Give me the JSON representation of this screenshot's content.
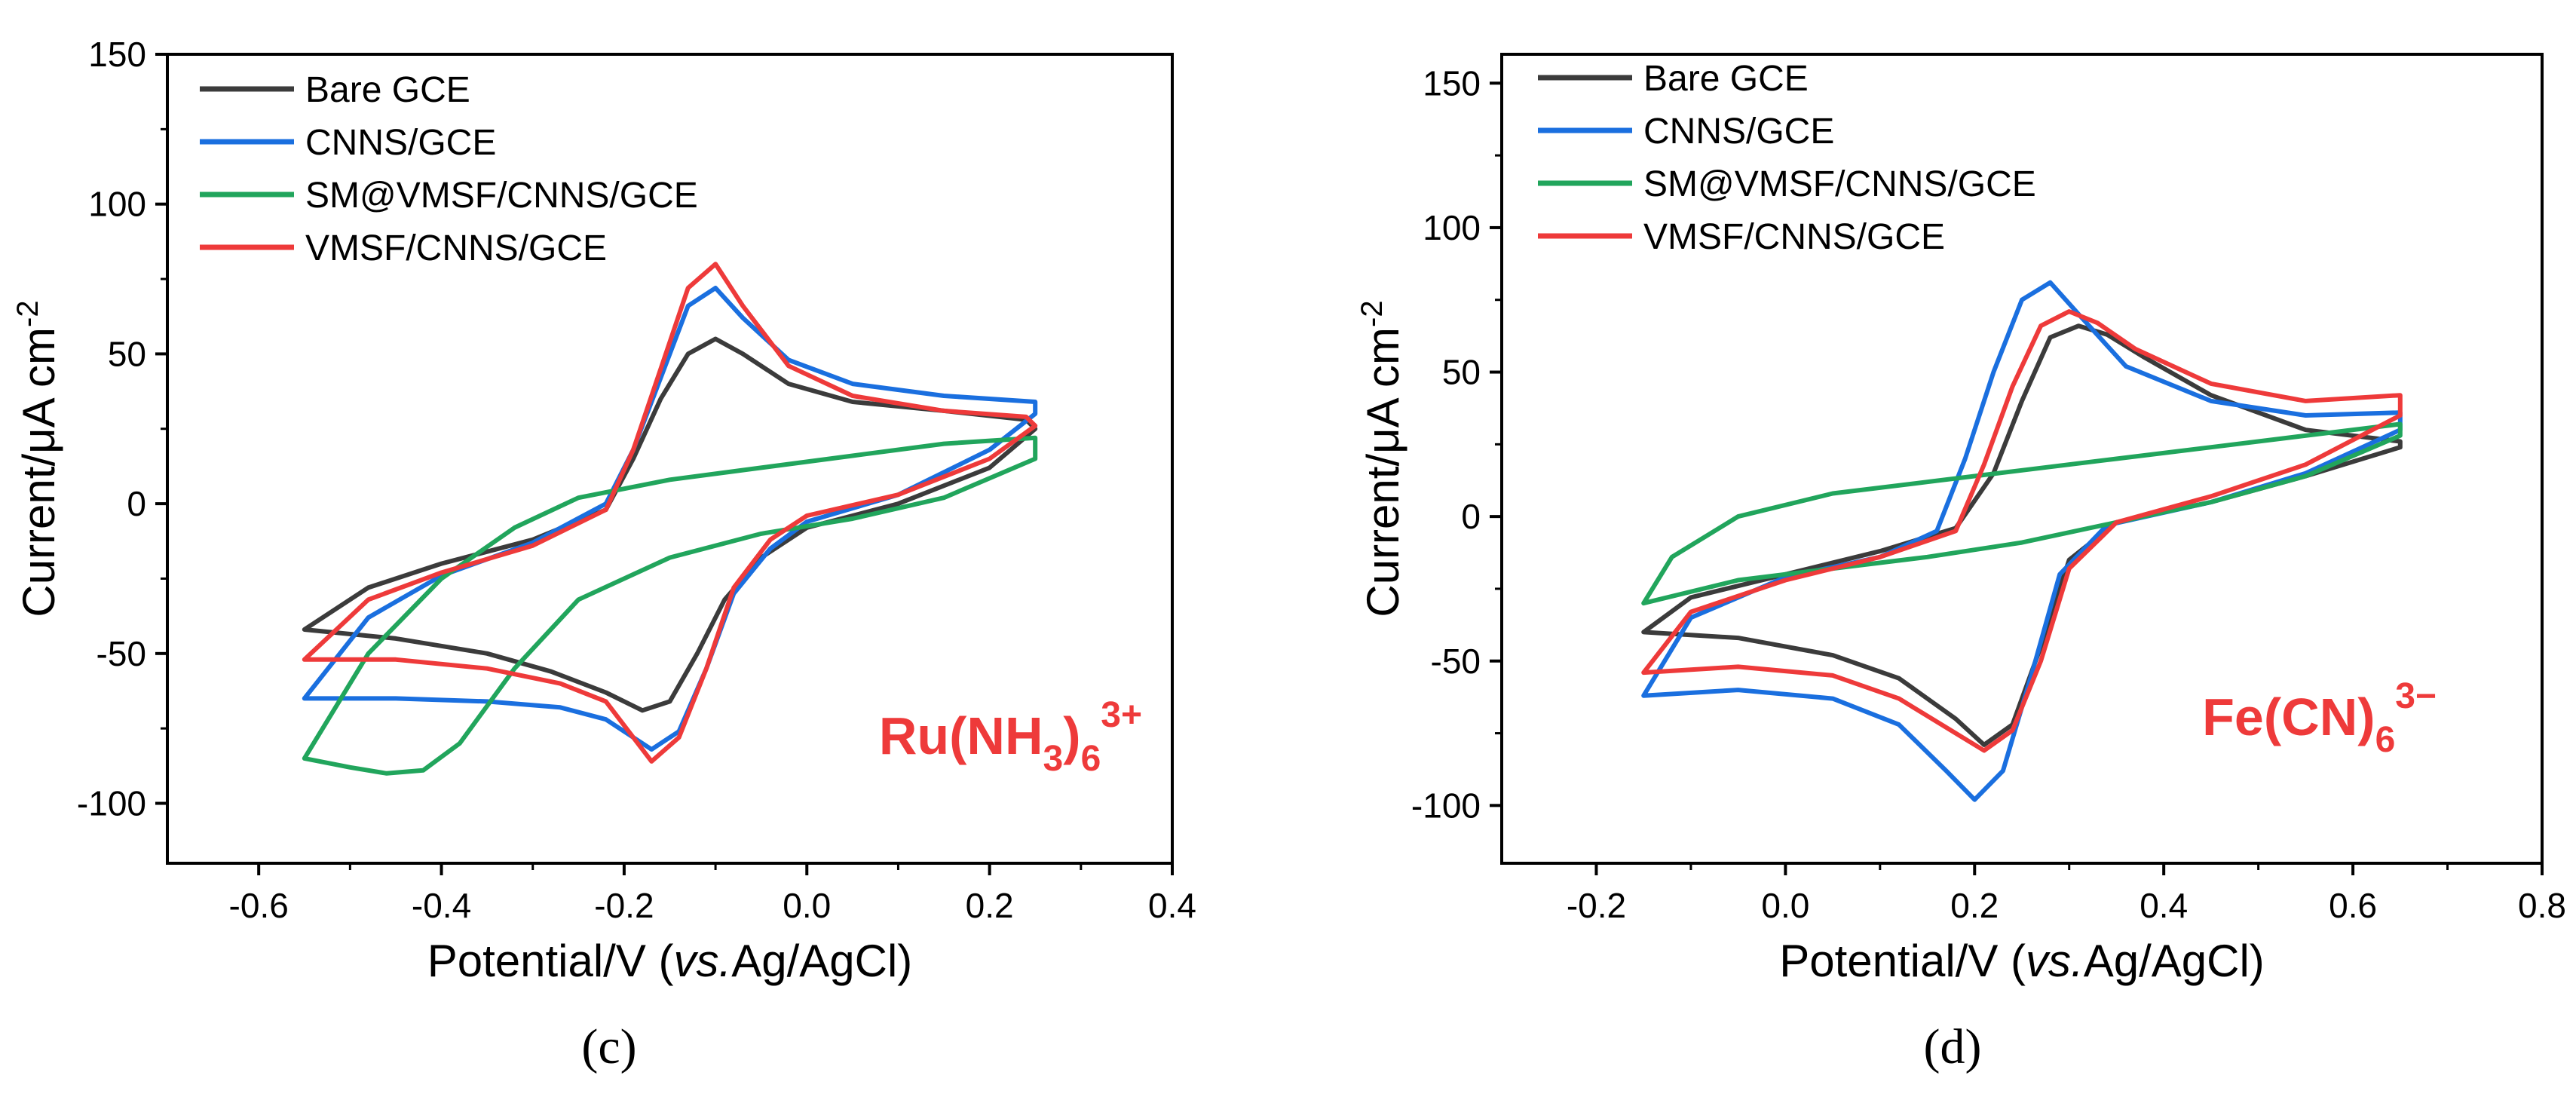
{
  "colors": {
    "bare": "#3b3b3b",
    "cnns": "#1a6fdf",
    "sm": "#21a55c",
    "vmsf": "#ee3a3a",
    "species": "#ee3a3a"
  },
  "chart_data": [
    {
      "type": "line",
      "panel_label": "(c)",
      "ylabel_main": "Current/μA cm",
      "ylabel_sup": "-2",
      "xlabel_main": "Potential/V (",
      "xlabel_italic": "vs.",
      "xlabel_end": "Ag/AgCl)",
      "xlim": [
        -0.7,
        0.4
      ],
      "ylim": [
        -120,
        150
      ],
      "xticks": [
        "-0.6",
        "-0.4",
        "-0.2",
        "0.0",
        "0.2",
        "0.4"
      ],
      "yticks": [
        "-100",
        "-50",
        "0",
        "50",
        "100",
        "150"
      ],
      "species": {
        "base": "Ru(NH",
        "sub1": "3",
        "mid": ")",
        "sub2": "6",
        "sup": "3+"
      },
      "legend": [
        "Bare GCE",
        "CNNS/GCE",
        "SM@VMSF/CNNS/GCE",
        "VMSF/CNNS/GCE"
      ],
      "series": [
        {
          "name": "Bare GCE",
          "color_key": "bare",
          "points": [
            [
              -0.55,
              -42
            ],
            [
              -0.45,
              -45
            ],
            [
              -0.35,
              -50
            ],
            [
              -0.28,
              -56
            ],
            [
              -0.22,
              -63
            ],
            [
              -0.18,
              -69
            ],
            [
              -0.15,
              -66
            ],
            [
              -0.12,
              -50
            ],
            [
              -0.09,
              -32
            ],
            [
              -0.05,
              -18
            ],
            [
              0.0,
              -8
            ],
            [
              0.1,
              0
            ],
            [
              0.2,
              12
            ],
            [
              0.25,
              25
            ],
            [
              0.24,
              28
            ],
            [
              0.15,
              31
            ],
            [
              0.05,
              34
            ],
            [
              -0.02,
              40
            ],
            [
              -0.07,
              50
            ],
            [
              -0.1,
              55
            ],
            [
              -0.13,
              50
            ],
            [
              -0.16,
              35
            ],
            [
              -0.19,
              15
            ],
            [
              -0.22,
              -2
            ],
            [
              -0.3,
              -12
            ],
            [
              -0.4,
              -20
            ],
            [
              -0.48,
              -28
            ],
            [
              -0.55,
              -42
            ]
          ]
        },
        {
          "name": "CNNS/GCE",
          "color_key": "cnns",
          "points": [
            [
              -0.55,
              -65
            ],
            [
              -0.45,
              -65
            ],
            [
              -0.35,
              -66
            ],
            [
              -0.27,
              -68
            ],
            [
              -0.22,
              -72
            ],
            [
              -0.17,
              -82
            ],
            [
              -0.14,
              -76
            ],
            [
              -0.11,
              -55
            ],
            [
              -0.08,
              -30
            ],
            [
              -0.04,
              -15
            ],
            [
              0.0,
              -6
            ],
            [
              0.1,
              3
            ],
            [
              0.2,
              18
            ],
            [
              0.25,
              30
            ],
            [
              0.25,
              34
            ],
            [
              0.15,
              36
            ],
            [
              0.05,
              40
            ],
            [
              -0.02,
              48
            ],
            [
              -0.07,
              62
            ],
            [
              -0.1,
              72
            ],
            [
              -0.13,
              66
            ],
            [
              -0.16,
              42
            ],
            [
              -0.19,
              18
            ],
            [
              -0.22,
              0
            ],
            [
              -0.3,
              -13
            ],
            [
              -0.4,
              -24
            ],
            [
              -0.48,
              -38
            ],
            [
              -0.55,
              -65
            ]
          ]
        },
        {
          "name": "SM@VMSF/CNNS/GCE",
          "color_key": "sm",
          "points": [
            [
              -0.55,
              -85
            ],
            [
              -0.5,
              -88
            ],
            [
              -0.46,
              -90
            ],
            [
              -0.42,
              -89
            ],
            [
              -0.38,
              -80
            ],
            [
              -0.32,
              -55
            ],
            [
              -0.25,
              -32
            ],
            [
              -0.15,
              -18
            ],
            [
              -0.05,
              -10
            ],
            [
              0.05,
              -5
            ],
            [
              0.15,
              2
            ],
            [
              0.25,
              15
            ],
            [
              0.25,
              22
            ],
            [
              0.15,
              20
            ],
            [
              0.05,
              16
            ],
            [
              -0.05,
              12
            ],
            [
              -0.15,
              8
            ],
            [
              -0.25,
              2
            ],
            [
              -0.32,
              -8
            ],
            [
              -0.4,
              -25
            ],
            [
              -0.48,
              -50
            ],
            [
              -0.55,
              -85
            ]
          ]
        },
        {
          "name": "VMSF/CNNS/GCE",
          "color_key": "vmsf",
          "points": [
            [
              -0.55,
              -52
            ],
            [
              -0.45,
              -52
            ],
            [
              -0.35,
              -55
            ],
            [
              -0.27,
              -60
            ],
            [
              -0.22,
              -66
            ],
            [
              -0.17,
              -86
            ],
            [
              -0.14,
              -78
            ],
            [
              -0.11,
              -55
            ],
            [
              -0.08,
              -28
            ],
            [
              -0.04,
              -12
            ],
            [
              0.0,
              -4
            ],
            [
              0.1,
              3
            ],
            [
              0.2,
              15
            ],
            [
              0.25,
              26
            ],
            [
              0.24,
              29
            ],
            [
              0.15,
              31
            ],
            [
              0.05,
              36
            ],
            [
              -0.02,
              46
            ],
            [
              -0.07,
              66
            ],
            [
              -0.1,
              80
            ],
            [
              -0.13,
              72
            ],
            [
              -0.16,
              45
            ],
            [
              -0.19,
              18
            ],
            [
              -0.22,
              -2
            ],
            [
              -0.3,
              -14
            ],
            [
              -0.4,
              -23
            ],
            [
              -0.48,
              -32
            ],
            [
              -0.55,
              -52
            ]
          ]
        }
      ]
    },
    {
      "type": "line",
      "panel_label": "(d)",
      "ylabel_main": "Current/μA cm",
      "ylabel_sup": "-2",
      "xlabel_main": "Potential/V (",
      "xlabel_italic": "vs.",
      "xlabel_end": "Ag/AgCl)",
      "xlim": [
        -0.3,
        0.8
      ],
      "ylim": [
        -120,
        160
      ],
      "xticks": [
        "-0.2",
        "0.0",
        "0.2",
        "0.4",
        "0.6",
        "0.8"
      ],
      "yticks": [
        "-100",
        "-50",
        "0",
        "50",
        "100",
        "150"
      ],
      "species": {
        "base": "Fe(CN)",
        "sub1": "6",
        "mid": "",
        "sub2": "",
        "sup": "3−"
      },
      "legend": [
        "Bare GCE",
        "CNNS/GCE",
        "SM@VMSF/CNNS/GCE",
        "VMSF/CNNS/GCE"
      ],
      "series": [
        {
          "name": "Bare GCE",
          "color_key": "bare",
          "points": [
            [
              -0.15,
              -40
            ],
            [
              -0.05,
              -42
            ],
            [
              0.05,
              -48
            ],
            [
              0.12,
              -56
            ],
            [
              0.18,
              -70
            ],
            [
              0.21,
              -79
            ],
            [
              0.24,
              -72
            ],
            [
              0.27,
              -45
            ],
            [
              0.3,
              -15
            ],
            [
              0.35,
              -2
            ],
            [
              0.45,
              5
            ],
            [
              0.55,
              14
            ],
            [
              0.65,
              24
            ],
            [
              0.65,
              26
            ],
            [
              0.55,
              30
            ],
            [
              0.45,
              42
            ],
            [
              0.38,
              55
            ],
            [
              0.34,
              63
            ],
            [
              0.31,
              66
            ],
            [
              0.28,
              62
            ],
            [
              0.25,
              40
            ],
            [
              0.22,
              15
            ],
            [
              0.18,
              -4
            ],
            [
              0.1,
              -12
            ],
            [
              0.0,
              -20
            ],
            [
              -0.1,
              -28
            ],
            [
              -0.15,
              -40
            ]
          ]
        },
        {
          "name": "CNNS/GCE",
          "color_key": "cnns",
          "points": [
            [
              -0.15,
              -62
            ],
            [
              -0.05,
              -60
            ],
            [
              0.05,
              -63
            ],
            [
              0.12,
              -72
            ],
            [
              0.17,
              -88
            ],
            [
              0.2,
              -98
            ],
            [
              0.23,
              -88
            ],
            [
              0.26,
              -55
            ],
            [
              0.29,
              -20
            ],
            [
              0.34,
              -3
            ],
            [
              0.45,
              5
            ],
            [
              0.55,
              15
            ],
            [
              0.65,
              30
            ],
            [
              0.65,
              36
            ],
            [
              0.55,
              35
            ],
            [
              0.45,
              40
            ],
            [
              0.36,
              52
            ],
            [
              0.31,
              70
            ],
            [
              0.28,
              81
            ],
            [
              0.25,
              75
            ],
            [
              0.22,
              50
            ],
            [
              0.19,
              20
            ],
            [
              0.16,
              -5
            ],
            [
              0.1,
              -14
            ],
            [
              0.0,
              -21
            ],
            [
              -0.1,
              -35
            ],
            [
              -0.15,
              -62
            ]
          ]
        },
        {
          "name": "SM@VMSF/CNNS/GCE",
          "color_key": "sm",
          "points": [
            [
              -0.15,
              -30
            ],
            [
              -0.05,
              -22
            ],
            [
              0.05,
              -18
            ],
            [
              0.15,
              -14
            ],
            [
              0.25,
              -9
            ],
            [
              0.35,
              -2
            ],
            [
              0.45,
              5
            ],
            [
              0.55,
              14
            ],
            [
              0.65,
              28
            ],
            [
              0.65,
              32
            ],
            [
              0.55,
              28
            ],
            [
              0.45,
              24
            ],
            [
              0.35,
              20
            ],
            [
              0.25,
              16
            ],
            [
              0.15,
              12
            ],
            [
              0.05,
              8
            ],
            [
              -0.05,
              0
            ],
            [
              -0.12,
              -14
            ],
            [
              -0.15,
              -30
            ]
          ]
        },
        {
          "name": "VMSF/CNNS/GCE",
          "color_key": "vmsf",
          "points": [
            [
              -0.15,
              -54
            ],
            [
              -0.05,
              -52
            ],
            [
              0.05,
              -55
            ],
            [
              0.12,
              -63
            ],
            [
              0.18,
              -75
            ],
            [
              0.21,
              -81
            ],
            [
              0.24,
              -74
            ],
            [
              0.27,
              -50
            ],
            [
              0.3,
              -18
            ],
            [
              0.35,
              -2
            ],
            [
              0.45,
              7
            ],
            [
              0.55,
              18
            ],
            [
              0.65,
              35
            ],
            [
              0.65,
              42
            ],
            [
              0.55,
              40
            ],
            [
              0.45,
              46
            ],
            [
              0.37,
              58
            ],
            [
              0.33,
              67
            ],
            [
              0.3,
              71
            ],
            [
              0.27,
              66
            ],
            [
              0.24,
              45
            ],
            [
              0.21,
              18
            ],
            [
              0.18,
              -5
            ],
            [
              0.1,
              -14
            ],
            [
              0.0,
              -22
            ],
            [
              -0.1,
              -33
            ],
            [
              -0.15,
              -54
            ]
          ]
        }
      ]
    }
  ]
}
